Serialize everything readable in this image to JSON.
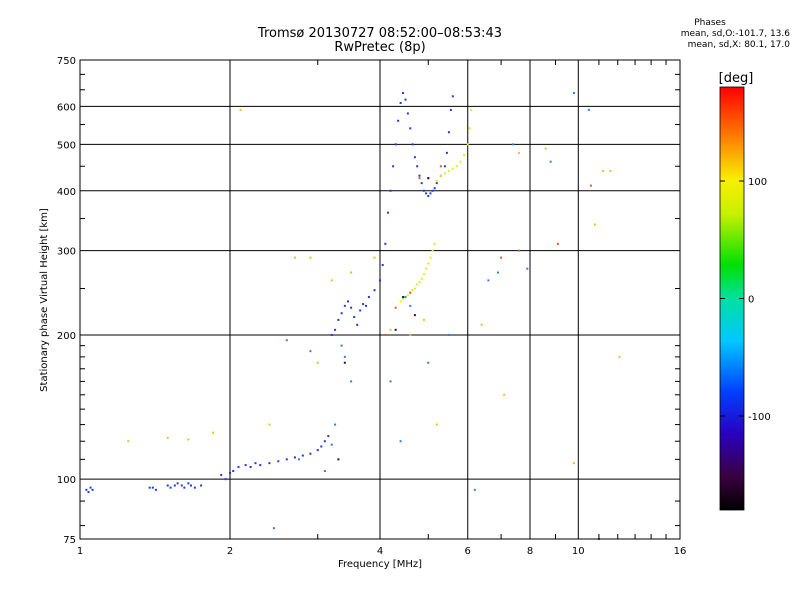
{
  "header": {
    "title_line1": "Tromsø 20130727 08:52:00–08:53:43",
    "title_line2": "RwPretec (8p)"
  },
  "phases": {
    "title": "Phases",
    "line_o": "mean, sd,O:-101.7, 13.6",
    "line_x": "mean, sd,X:  80.1, 17.0"
  },
  "chart_data": {
    "type": "scatter",
    "title": "Tromsø 20130727 08:52:00–08:53:43",
    "subtitle": "RwPretec (8p)",
    "xlabel": "Frequency [MHz]",
    "ylabel": "Stationary phase Virtual Height [km]",
    "x_scale": "log",
    "y_scale": "log",
    "xlim": [
      1,
      16
    ],
    "ylim": [
      75,
      750
    ],
    "x_ticks": [
      1,
      2,
      4,
      6,
      8,
      10,
      16
    ],
    "x_tick_labels": [
      "1",
      "2",
      "4",
      "6",
      "8",
      "10",
      "16"
    ],
    "y_ticks": [
      75,
      100,
      200,
      300,
      400,
      500,
      600,
      750
    ],
    "y_tick_labels": [
      "75",
      "100",
      "200",
      "300",
      "400",
      "500",
      "600",
      "750"
    ],
    "grid": true,
    "colorbar": {
      "label": "[deg]",
      "range": [
        -180,
        180
      ],
      "ticks": [
        100,
        0,
        -100
      ],
      "tick_labels": [
        "100",
        "0",
        "-100"
      ]
    },
    "series": [
      {
        "color": "#1f3bd6",
        "x": [
          1.03,
          1.04,
          1.05,
          1.06,
          1.38,
          1.4,
          1.42,
          1.5,
          1.52,
          1.55,
          1.57,
          1.6,
          1.62,
          1.65,
          1.67,
          1.7,
          1.75,
          1.92,
          1.96,
          2.0,
          2.03,
          2.08,
          2.15,
          2.2,
          2.25,
          2.3,
          2.4,
          2.5,
          2.6,
          2.7,
          2.8,
          2.9,
          3.0,
          3.05,
          3.1,
          3.15,
          3.2,
          3.25,
          3.3,
          3.35,
          3.4,
          3.45,
          3.5,
          3.55,
          3.6,
          3.65,
          3.7,
          3.75,
          3.8,
          3.9,
          4.0,
          4.05,
          4.1,
          4.15,
          4.2,
          4.25,
          4.3,
          4.35,
          4.4,
          4.45,
          4.5,
          4.55,
          4.6,
          4.65,
          4.7,
          4.75,
          4.8,
          4.85,
          4.9,
          4.95,
          5.0,
          5.05,
          5.1,
          5.15,
          5.2,
          5.3,
          5.4,
          5.45,
          5.5,
          5.55,
          5.6
        ],
        "y": [
          95,
          94,
          96,
          95,
          96,
          96,
          95,
          97,
          96,
          97,
          98,
          97,
          96,
          98,
          97,
          96,
          97,
          102,
          100,
          103,
          104,
          106,
          107,
          106,
          108,
          107,
          108,
          109,
          110,
          111,
          112,
          113,
          115,
          117,
          120,
          123,
          200,
          205,
          215,
          222,
          230,
          235,
          228,
          218,
          210,
          225,
          232,
          230,
          240,
          248,
          260,
          280,
          310,
          360,
          400,
          450,
          500,
          560,
          610,
          640,
          620,
          580,
          540,
          500,
          470,
          450,
          430,
          415,
          400,
          395,
          390,
          395,
          400,
          405,
          415,
          430,
          450,
          480,
          530,
          590,
          630
        ]
      },
      {
        "color": "#e6ea1a",
        "x": [
          4.4,
          4.45,
          4.5,
          4.55,
          4.6,
          4.65,
          4.7,
          4.75,
          4.8,
          4.85,
          4.9,
          4.95,
          5.0,
          5.05,
          5.1,
          5.15,
          5.2,
          5.3,
          5.4,
          5.5,
          5.6,
          5.7,
          5.8,
          5.9,
          6.0,
          6.05,
          6.1
        ],
        "y": [
          235,
          238,
          240,
          242,
          245,
          248,
          250,
          255,
          258,
          262,
          268,
          275,
          282,
          290,
          300,
          310,
          420,
          430,
          435,
          440,
          445,
          450,
          460,
          475,
          500,
          540,
          590
        ]
      },
      {
        "color": "#2f7de0",
        "x": [
          2.45,
          2.6,
          2.75,
          2.9,
          3.1,
          3.2,
          3.25,
          3.35,
          3.4,
          3.5,
          4.2,
          4.4,
          4.5,
          4.6,
          5.0,
          5.5,
          6.2,
          6.6,
          6.9,
          7.4,
          7.9,
          8.8,
          9.8,
          10.5,
          11.0
        ],
        "y": [
          79,
          195,
          110,
          185,
          104,
          118,
          130,
          190,
          180,
          160,
          160,
          120,
          240,
          230,
          175,
          200,
          95,
          260,
          270,
          500,
          275,
          460,
          640,
          590,
          75
        ]
      },
      {
        "color": "#e8c020",
        "x": [
          1.25,
          1.5,
          1.65,
          1.85,
          2.1,
          2.4,
          2.7,
          2.9,
          3.0,
          3.2,
          3.5,
          3.9,
          4.2,
          4.6,
          4.9,
          5.2,
          6.4,
          7.1,
          7.6,
          8.6,
          9.8,
          10.8,
          11.2,
          11.6,
          12.1
        ],
        "y": [
          120,
          122,
          121,
          125,
          590,
          130,
          290,
          290,
          175,
          260,
          270,
          290,
          205,
          200,
          215,
          130,
          210,
          150,
          480,
          490,
          108,
          340,
          440,
          440,
          180
        ]
      },
      {
        "color": "#e05a20",
        "x": [
          4.1,
          4.3,
          4.6,
          4.8,
          5.0,
          5.3,
          7.0,
          7.6,
          9.1,
          10.6
        ],
        "y": [
          200,
          228,
          245,
          425,
          425,
          450,
          290,
          300,
          310,
          410
        ]
      },
      {
        "color": "#1a1a40",
        "x": [
          3.3,
          3.4,
          4.3,
          4.45,
          4.7,
          5.0
        ],
        "y": [
          110,
          175,
          205,
          240,
          220,
          425
        ]
      }
    ]
  }
}
